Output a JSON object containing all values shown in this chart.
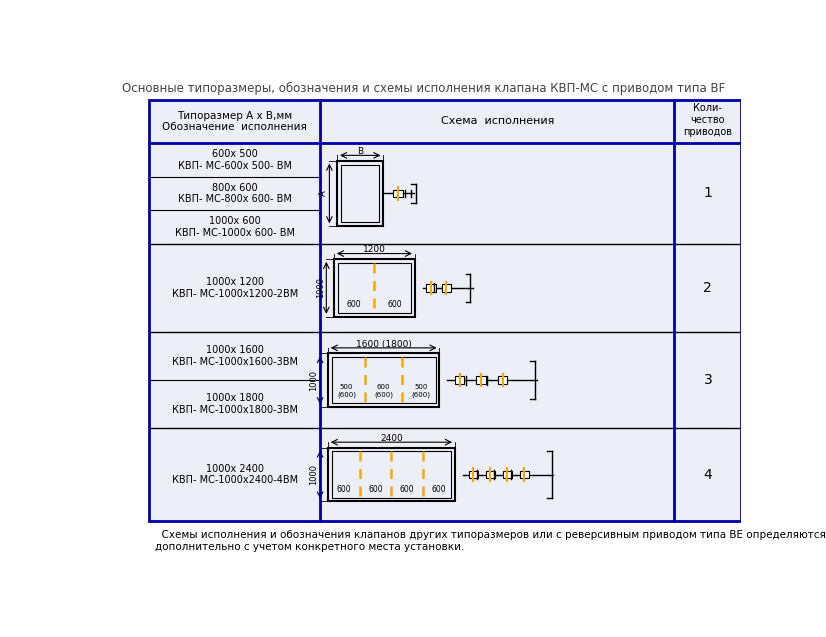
{
  "title": "Основные типоразмеры, обозначения и схемы исполнения клапана КВП-МС с приводом типа BF",
  "footer": "  Схемы исполнения и обозначения клапанов других типоразмеров или с реверсивным приводом типа BE определяются\nдополнительно с учетом конкретного места установки.",
  "col_header_1": "Типоразмер А х В,мм\nОбозначение  исполнения",
  "col_header_2": "Схема  исполнения",
  "col_header_3": "Коли-\nчество\nприводов",
  "bg_color": "#e8eaf5",
  "cell_bg": "#eceef8",
  "border_color": "#0000aa",
  "inner_border": "#000000",
  "orange_color": "#FFA500"
}
